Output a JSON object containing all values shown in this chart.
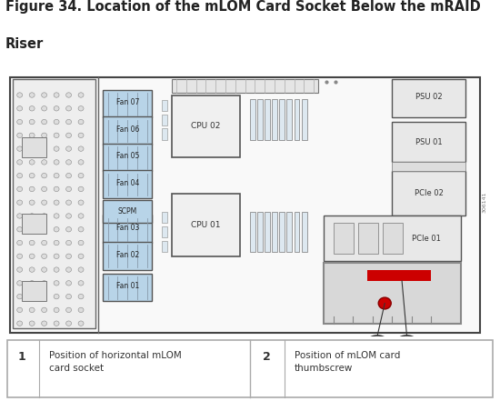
{
  "title_line1": "Figure 34. Location of the mLOM Card Socket Below the mRAID",
  "title_line2": "Riser",
  "title_fontsize": 10.5,
  "bg_color": "#ffffff",
  "label1_num": "1",
  "label1_text": "Position of horizontal mLOM\ncard socket",
  "label2_num": "2",
  "label2_text": "Position of mLOM card\nthumbscrew",
  "fan_labels": [
    "Fan 07",
    "Fan 06",
    "Fan 05",
    "Fan 04",
    "Fan 03",
    "Fan 02",
    "Fan 01"
  ],
  "fan_color": "#b8d4e8",
  "red_highlight": "#cc0000",
  "watermark_text": "306141",
  "hole_cols": [
    3.0,
    5.5,
    8.0,
    10.5,
    13.0,
    15.5
  ],
  "hole_rows": [
    3,
    6,
    9,
    12,
    15,
    18,
    21,
    24,
    27,
    30,
    33,
    36,
    39,
    42,
    45,
    48,
    51,
    54
  ]
}
